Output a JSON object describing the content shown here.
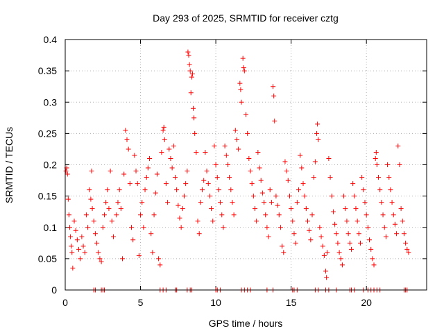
{
  "chart_data": {
    "type": "scatter",
    "title": "Day 293 of 2025, SRMTID for receiver cztg",
    "xlabel": "GPS time / hours",
    "ylabel": "SRMTID / TECUs",
    "xlim": [
      0,
      24
    ],
    "ylim": [
      0,
      0.4
    ],
    "xticks": [
      0,
      5,
      10,
      15,
      20
    ],
    "xtick_labels": [
      "0",
      "5",
      "10",
      "15",
      "20"
    ],
    "yticks": [
      0,
      0.05,
      0.1,
      0.15,
      0.2,
      0.25,
      0.3,
      0.35,
      0.4
    ],
    "ytick_labels": [
      "0",
      "0.05",
      "0.1",
      "0.15",
      "0.2",
      "0.25",
      "0.3",
      "0.35",
      "0.4"
    ],
    "grid": true,
    "marker": "+",
    "color": "#ff0000",
    "series": [
      {
        "name": "SRMTID",
        "points": [
          [
            0.05,
            0.19
          ],
          [
            0.1,
            0.195
          ],
          [
            0.15,
            0.185
          ],
          [
            0.2,
            0.145
          ],
          [
            0.25,
            0.12
          ],
          [
            0.3,
            0.1
          ],
          [
            0.35,
            0.085
          ],
          [
            0.4,
            0.07
          ],
          [
            0.45,
            0.06
          ],
          [
            0.5,
            0.035
          ],
          [
            0.6,
            0.11
          ],
          [
            0.7,
            0.095
          ],
          [
            0.8,
            0.08
          ],
          [
            0.9,
            0.065
          ],
          [
            1.0,
            0.05
          ],
          [
            1.1,
            0.085
          ],
          [
            1.2,
            0.07
          ],
          [
            1.3,
            0.06
          ],
          [
            1.4,
            0.12
          ],
          [
            1.5,
            0.1
          ],
          [
            1.6,
            0.16
          ],
          [
            1.7,
            0.145
          ],
          [
            1.75,
            0.19
          ],
          [
            1.8,
            0.13
          ],
          [
            1.9,
            0.11
          ],
          [
            2.0,
            0.09
          ],
          [
            2.1,
            0.075
          ],
          [
            2.2,
            0.06
          ],
          [
            2.3,
            0.05
          ],
          [
            2.4,
            0.045
          ],
          [
            2.5,
            0.1
          ],
          [
            2.6,
            0.12
          ],
          [
            2.7,
            0.14
          ],
          [
            2.8,
            0.16
          ],
          [
            2.9,
            0.13
          ],
          [
            3.0,
            0.19
          ],
          [
            3.1,
            0.11
          ],
          [
            3.2,
            0.085
          ],
          [
            3.4,
            0.12
          ],
          [
            3.5,
            0.14
          ],
          [
            3.6,
            0.16
          ],
          [
            3.7,
            0.13
          ],
          [
            3.8,
            0.05
          ],
          [
            3.9,
            0.185
          ],
          [
            4.0,
            0.255
          ],
          [
            4.1,
            0.24
          ],
          [
            4.2,
            0.225
          ],
          [
            4.3,
            0.17
          ],
          [
            4.4,
            0.1
          ],
          [
            4.5,
            0.08
          ],
          [
            4.6,
            0.215
          ],
          [
            4.7,
            0.19
          ],
          [
            4.8,
            0.17
          ],
          [
            4.9,
            0.055
          ],
          [
            5.0,
            0.12
          ],
          [
            5.1,
            0.14
          ],
          [
            5.2,
            0.1
          ],
          [
            5.3,
            0.16
          ],
          [
            5.4,
            0.18
          ],
          [
            5.5,
            0.195
          ],
          [
            5.6,
            0.21
          ],
          [
            5.7,
            0.09
          ],
          [
            5.8,
            0.06
          ],
          [
            5.9,
            0.12
          ],
          [
            6.0,
            0.155
          ],
          [
            6.1,
            0.185
          ],
          [
            6.2,
            0.05
          ],
          [
            6.3,
            0.04
          ],
          [
            6.4,
            0.22
          ],
          [
            6.5,
            0.255
          ],
          [
            6.55,
            0.26
          ],
          [
            6.6,
            0.24
          ],
          [
            6.7,
            0.17
          ],
          [
            6.8,
            0.14
          ],
          [
            6.9,
            0.225
          ],
          [
            7.0,
            0.21
          ],
          [
            7.1,
            0.195
          ],
          [
            7.2,
            0.23
          ],
          [
            7.3,
            0.18
          ],
          [
            7.4,
            0.16
          ],
          [
            7.5,
            0.135
          ],
          [
            7.6,
            0.115
          ],
          [
            7.7,
            0.1
          ],
          [
            7.8,
            0.13
          ],
          [
            7.9,
            0.15
          ],
          [
            8.0,
            0.17
          ],
          [
            8.1,
            0.19
          ],
          [
            8.15,
            0.38
          ],
          [
            8.2,
            0.375
          ],
          [
            8.25,
            0.36
          ],
          [
            8.3,
            0.35
          ],
          [
            8.35,
            0.315
          ],
          [
            8.4,
            0.34
          ],
          [
            8.45,
            0.345
          ],
          [
            8.5,
            0.29
          ],
          [
            8.55,
            0.275
          ],
          [
            8.6,
            0.25
          ],
          [
            8.7,
            0.22
          ],
          [
            8.8,
            0.11
          ],
          [
            8.9,
            0.09
          ],
          [
            9.0,
            0.14
          ],
          [
            9.1,
            0.16
          ],
          [
            9.2,
            0.175
          ],
          [
            9.3,
            0.22
          ],
          [
            9.4,
            0.19
          ],
          [
            9.5,
            0.17
          ],
          [
            9.6,
            0.15
          ],
          [
            9.7,
            0.13
          ],
          [
            9.8,
            0.11
          ],
          [
            9.9,
            0.23
          ],
          [
            10.0,
            0.2
          ],
          [
            10.1,
            0.18
          ],
          [
            10.2,
            0.16
          ],
          [
            10.3,
            0.14
          ],
          [
            10.4,
            0.12
          ],
          [
            10.5,
            0.1
          ],
          [
            10.6,
            0.23
          ],
          [
            10.7,
            0.215
          ],
          [
            10.8,
            0.2
          ],
          [
            10.9,
            0.18
          ],
          [
            11.0,
            0.16
          ],
          [
            11.1,
            0.14
          ],
          [
            11.2,
            0.12
          ],
          [
            11.3,
            0.255
          ],
          [
            11.4,
            0.24
          ],
          [
            11.5,
            0.225
          ],
          [
            11.6,
            0.33
          ],
          [
            11.65,
            0.32
          ],
          [
            11.7,
            0.3
          ],
          [
            11.8,
            0.37
          ],
          [
            11.85,
            0.355
          ],
          [
            11.9,
            0.35
          ],
          [
            12.0,
            0.28
          ],
          [
            12.1,
            0.25
          ],
          [
            12.2,
            0.21
          ],
          [
            12.3,
            0.19
          ],
          [
            12.4,
            0.17
          ],
          [
            12.5,
            0.15
          ],
          [
            12.6,
            0.13
          ],
          [
            12.7,
            0.11
          ],
          [
            12.8,
            0.22
          ],
          [
            12.9,
            0.195
          ],
          [
            13.0,
            0.175
          ],
          [
            13.1,
            0.155
          ],
          [
            13.2,
            0.14
          ],
          [
            13.3,
            0.12
          ],
          [
            13.4,
            0.1
          ],
          [
            13.5,
            0.085
          ],
          [
            13.6,
            0.16
          ],
          [
            13.7,
            0.14
          ],
          [
            13.8,
            0.325
          ],
          [
            13.85,
            0.31
          ],
          [
            13.9,
            0.27
          ],
          [
            14.0,
            0.15
          ],
          [
            14.1,
            0.135
          ],
          [
            14.2,
            0.12
          ],
          [
            14.3,
            0.1
          ],
          [
            14.4,
            0.07
          ],
          [
            14.5,
            0.06
          ],
          [
            14.6,
            0.205
          ],
          [
            14.7,
            0.19
          ],
          [
            14.8,
            0.175
          ],
          [
            14.9,
            0.15
          ],
          [
            15.0,
            0.13
          ],
          [
            15.1,
            0.11
          ],
          [
            15.2,
            0.09
          ],
          [
            15.3,
            0.075
          ],
          [
            15.4,
            0.14
          ],
          [
            15.5,
            0.16
          ],
          [
            15.6,
            0.215
          ],
          [
            15.7,
            0.195
          ],
          [
            15.8,
            0.17
          ],
          [
            15.9,
            0.15
          ],
          [
            16.0,
            0.13
          ],
          [
            16.1,
            0.11
          ],
          [
            16.2,
            0.095
          ],
          [
            16.3,
            0.08
          ],
          [
            16.4,
            0.12
          ],
          [
            16.5,
            0.18
          ],
          [
            16.6,
            0.205
          ],
          [
            16.7,
            0.25
          ],
          [
            16.75,
            0.265
          ],
          [
            16.8,
            0.24
          ],
          [
            16.9,
            0.1
          ],
          [
            17.0,
            0.085
          ],
          [
            17.1,
            0.07
          ],
          [
            17.2,
            0.055
          ],
          [
            17.3,
            0.03
          ],
          [
            17.35,
            0.02
          ],
          [
            17.4,
            0.06
          ],
          [
            17.5,
            0.21
          ],
          [
            17.6,
            0.18
          ],
          [
            17.7,
            0.15
          ],
          [
            17.8,
            0.125
          ],
          [
            17.9,
            0.105
          ],
          [
            18.0,
            0.09
          ],
          [
            18.1,
            0.075
          ],
          [
            18.2,
            0.06
          ],
          [
            18.3,
            0.05
          ],
          [
            18.4,
            0.04
          ],
          [
            18.5,
            0.15
          ],
          [
            18.6,
            0.13
          ],
          [
            18.7,
            0.11
          ],
          [
            18.8,
            0.09
          ],
          [
            18.9,
            0.075
          ],
          [
            19.0,
            0.065
          ],
          [
            19.1,
            0.17
          ],
          [
            19.2,
            0.15
          ],
          [
            19.3,
            0.13
          ],
          [
            19.4,
            0.11
          ],
          [
            19.5,
            0.09
          ],
          [
            19.6,
            0.075
          ],
          [
            19.7,
            0.18
          ],
          [
            19.8,
            0.16
          ],
          [
            19.9,
            0.14
          ],
          [
            20.0,
            0.12
          ],
          [
            20.1,
            0.1
          ],
          [
            20.2,
            0.08
          ],
          [
            20.3,
            0.065
          ],
          [
            20.4,
            0.05
          ],
          [
            20.5,
            0.04
          ],
          [
            20.6,
            0.21
          ],
          [
            20.65,
            0.22
          ],
          [
            20.7,
            0.2
          ],
          [
            20.8,
            0.18
          ],
          [
            20.9,
            0.16
          ],
          [
            21.0,
            0.14
          ],
          [
            21.1,
            0.12
          ],
          [
            21.2,
            0.1
          ],
          [
            21.3,
            0.085
          ],
          [
            21.4,
            0.2
          ],
          [
            21.5,
            0.18
          ],
          [
            21.6,
            0.16
          ],
          [
            21.7,
            0.14
          ],
          [
            21.8,
            0.12
          ],
          [
            21.9,
            0.105
          ],
          [
            22.0,
            0.09
          ],
          [
            22.1,
            0.23
          ],
          [
            22.2,
            0.2
          ],
          [
            22.3,
            0.13
          ],
          [
            22.4,
            0.11
          ],
          [
            22.5,
            0.09
          ],
          [
            22.6,
            0.075
          ],
          [
            22.7,
            0.065
          ],
          [
            22.8,
            0.06
          ]
        ]
      },
      {
        "name": "zero-level markers",
        "points": [
          [
            1.9,
            0.0
          ],
          [
            2.0,
            0.0
          ],
          [
            2.4,
            0.0
          ],
          [
            2.5,
            0.0
          ],
          [
            2.6,
            0.0
          ],
          [
            6.3,
            0.0
          ],
          [
            6.5,
            0.0
          ],
          [
            6.7,
            0.0
          ],
          [
            7.3,
            0.0
          ],
          [
            7.4,
            0.0
          ],
          [
            8.1,
            0.0
          ],
          [
            8.3,
            0.0
          ],
          [
            8.4,
            0.0
          ],
          [
            10.0,
            0.0
          ],
          [
            10.1,
            0.0
          ],
          [
            10.3,
            0.0
          ],
          [
            11.7,
            0.0
          ],
          [
            11.9,
            0.0
          ],
          [
            12.1,
            0.0
          ],
          [
            12.3,
            0.0
          ],
          [
            13.4,
            0.0
          ],
          [
            13.8,
            0.0
          ],
          [
            15.1,
            0.0
          ],
          [
            15.2,
            0.0
          ],
          [
            15.4,
            0.0
          ],
          [
            16.6,
            0.0
          ],
          [
            16.8,
            0.0
          ],
          [
            17.3,
            0.0
          ],
          [
            17.5,
            0.0
          ],
          [
            18.0,
            0.0
          ],
          [
            18.9,
            0.0
          ],
          [
            19.0,
            0.0
          ],
          [
            19.2,
            0.0
          ],
          [
            19.8,
            0.0
          ],
          [
            20.1,
            0.0
          ],
          [
            20.3,
            0.0
          ],
          [
            20.5,
            0.0
          ],
          [
            20.7,
            0.0
          ],
          [
            20.9,
            0.0
          ],
          [
            22.5,
            0.0
          ],
          [
            22.6,
            0.0
          ],
          [
            22.7,
            0.0
          ]
        ]
      }
    ]
  }
}
